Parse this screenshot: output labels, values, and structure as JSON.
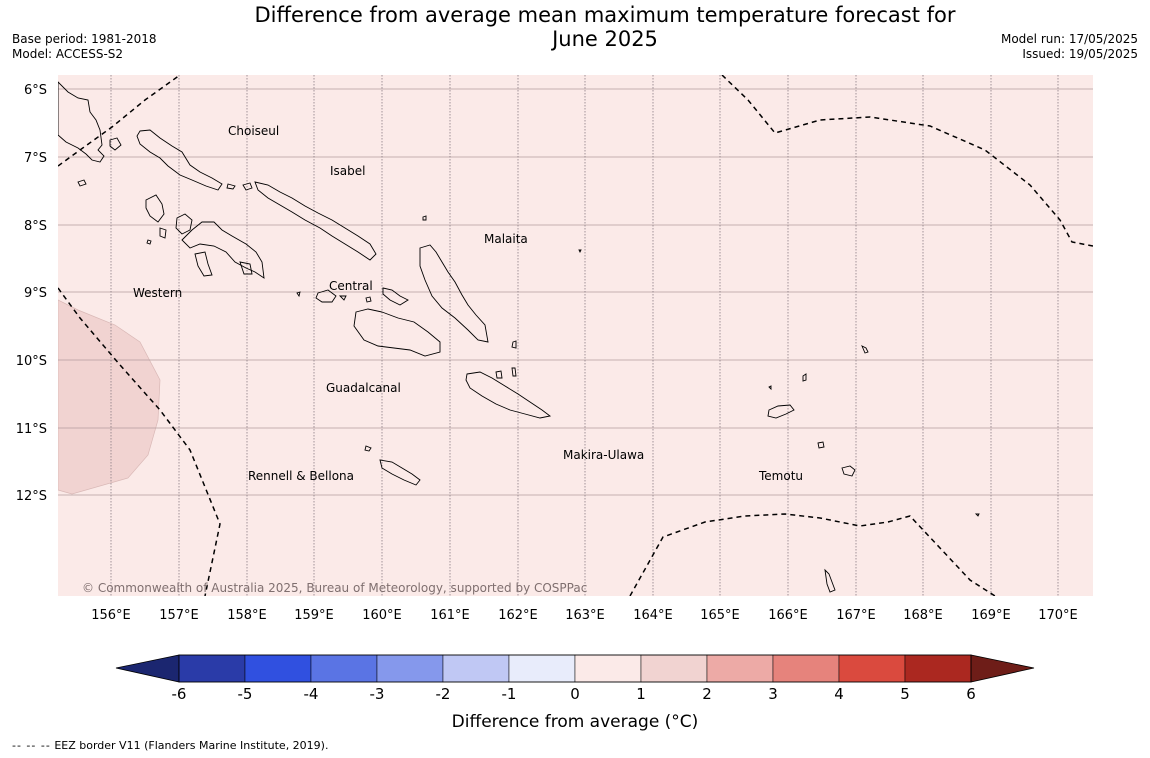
{
  "header": {
    "title_line1": "Difference from average mean maximum temperature forecast for",
    "title_line2": "June 2025",
    "base_period": "Base period: 1981-2018",
    "model": "Model: ACCESS-S2",
    "model_run": "Model run: 17/05/2025",
    "issued": "Issued: 19/05/2025"
  },
  "map": {
    "background_color": "#fbeae8",
    "shaded_area_color": "#f1d3d1",
    "lat_labels": [
      "6°S",
      "7°S",
      "8°S",
      "9°S",
      "10°S",
      "11°S",
      "12°S"
    ],
    "lon_labels": [
      "156°E",
      "157°E",
      "158°E",
      "159°E",
      "160°E",
      "161°E",
      "162°E",
      "163°E",
      "164°E",
      "165°E",
      "166°E",
      "167°E",
      "168°E",
      "169°E",
      "170°E"
    ],
    "regions": {
      "choiseul": "Choiseul",
      "isabel": "Isabel",
      "malaita": "Malaita",
      "western": "Western",
      "central": "Central",
      "guadalcanal": "Guadalcanal",
      "makira": "Makira-Ulawa",
      "rennell": "Rennell & Bellona",
      "temotu": "Temotu"
    },
    "copyright": "© Commonwealth of Australia 2025, Bureau of Meteorology, supported by COSPPac"
  },
  "colorbar": {
    "ticks": [
      "-6",
      "-5",
      "-4",
      "-3",
      "-2",
      "-1",
      "0",
      "1",
      "2",
      "3",
      "4",
      "5",
      "6"
    ],
    "colors": [
      "#2a3ba8",
      "#3050e0",
      "#5a74e4",
      "#8598ec",
      "#c0c8f4",
      "#e8ecfb",
      "#fbeae8",
      "#f1d3d1",
      "#edaaa6",
      "#e6837c",
      "#da4a3e",
      "#ab2820"
    ],
    "under_color": "#1b2670",
    "over_color": "#6e1d18",
    "label": "Difference from average (°C)"
  },
  "footer": {
    "dashes": "-- -- --",
    "text": "EEZ border V11 (Flanders Marine Institute, 2019)."
  }
}
